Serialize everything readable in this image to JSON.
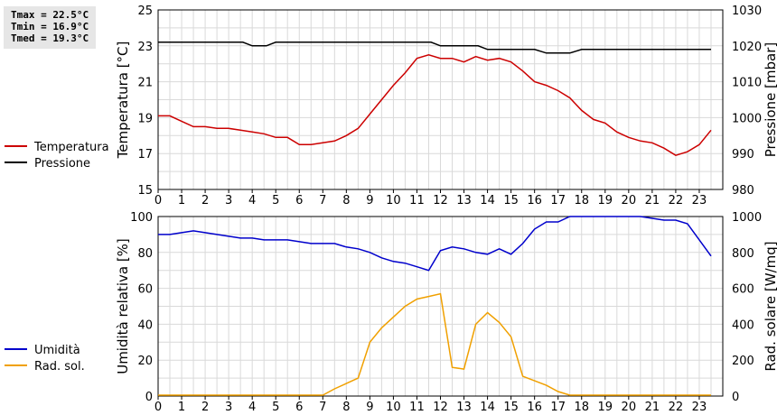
{
  "stats": {
    "tmax": "Tmax = 22.5°C",
    "tmin": "Tmin = 16.9°C",
    "tmed": "Tmed = 19.3°C"
  },
  "chart_data": [
    {
      "type": "line",
      "ylabel": "Temperatura [°C]",
      "ylabel_right": "Pressione [mbar]",
      "x_ticks": [
        "0",
        "1",
        "2",
        "3",
        "4",
        "5",
        "6",
        "7",
        "8",
        "9",
        "10",
        "11",
        "12",
        "13",
        "14",
        "15",
        "16",
        "17",
        "18",
        "19",
        "20",
        "21",
        "22",
        "23"
      ],
      "xlim": [
        0,
        24
      ],
      "ylim": [
        15,
        25
      ],
      "y_ticks": [
        "15",
        "17",
        "19",
        "21",
        "23",
        "25"
      ],
      "ylim_right": [
        980,
        1030
      ],
      "y_ticks_right": [
        "980",
        "990",
        "1000",
        "1010",
        "1020",
        "1030"
      ],
      "grid": true,
      "legend_position": "left",
      "series": [
        {
          "name": "Temperatura",
          "axis": "left",
          "color": "#cc0000",
          "x": [
            0,
            0.5,
            1,
            1.5,
            2,
            2.5,
            3,
            3.5,
            4,
            4.5,
            5,
            5.5,
            6,
            6.5,
            7,
            7.5,
            8,
            8.5,
            9,
            9.5,
            10,
            10.5,
            11,
            11.5,
            12,
            12.5,
            13,
            13.5,
            14,
            14.5,
            15,
            15.5,
            16,
            16.5,
            17,
            17.5,
            18,
            18.5,
            19,
            19.5,
            20,
            20.5,
            21,
            21.5,
            22,
            22.5,
            23,
            23.5
          ],
          "y": [
            19.1,
            19.1,
            18.8,
            18.5,
            18.5,
            18.4,
            18.4,
            18.3,
            18.2,
            18.1,
            17.9,
            17.9,
            17.5,
            17.5,
            17.6,
            17.7,
            18.0,
            18.4,
            19.2,
            20.0,
            20.8,
            21.5,
            22.3,
            22.5,
            22.3,
            22.3,
            22.1,
            22.4,
            22.2,
            22.3,
            22.1,
            21.6,
            21.0,
            20.8,
            20.5,
            20.1,
            19.4,
            18.9,
            18.7,
            18.2,
            17.9,
            17.7,
            17.6,
            17.3,
            16.9,
            17.1,
            17.5,
            18.3
          ]
        },
        {
          "name": "Pressione",
          "axis": "right",
          "color": "#000000",
          "x": [
            0,
            1,
            2,
            3,
            3.6,
            4,
            4.6,
            5,
            6,
            7,
            8,
            9,
            10,
            11,
            11.6,
            12,
            13,
            13.6,
            14,
            15,
            16,
            16.5,
            17,
            17.5,
            18,
            19,
            20,
            21,
            22,
            23,
            23.5
          ],
          "y": [
            1021,
            1021,
            1021,
            1021,
            1021,
            1020,
            1020,
            1021,
            1021,
            1021,
            1021,
            1021,
            1021,
            1021,
            1021,
            1020,
            1020,
            1020,
            1019,
            1019,
            1019,
            1018,
            1018,
            1018,
            1019,
            1019,
            1019,
            1019,
            1019,
            1019,
            1019
          ]
        }
      ]
    },
    {
      "type": "line",
      "ylabel": "Umidità relativa [%]",
      "ylabel_right": "Rad. solare [W/mq]",
      "x_ticks": [
        "0",
        "1",
        "2",
        "3",
        "4",
        "5",
        "6",
        "7",
        "8",
        "9",
        "10",
        "11",
        "12",
        "13",
        "14",
        "15",
        "16",
        "17",
        "18",
        "19",
        "20",
        "21",
        "22",
        "23"
      ],
      "xlim": [
        0,
        24
      ],
      "ylim": [
        0,
        100
      ],
      "y_ticks": [
        "0",
        "20",
        "40",
        "60",
        "80",
        "100"
      ],
      "ylim_right": [
        0,
        1000
      ],
      "y_ticks_right": [
        "0",
        "200",
        "400",
        "600",
        "800",
        "1000"
      ],
      "grid": true,
      "legend_position": "left",
      "series": [
        {
          "name": "Umidità",
          "axis": "left",
          "color": "#0000cc",
          "x": [
            0,
            0.5,
            1,
            1.5,
            2,
            2.5,
            3,
            3.5,
            4,
            4.5,
            5,
            5.5,
            6,
            6.5,
            7,
            7.5,
            8,
            8.5,
            9,
            9.5,
            10,
            10.5,
            11,
            11.5,
            12,
            12.5,
            13,
            13.5,
            14,
            14.5,
            15,
            15.5,
            16,
            16.5,
            17,
            17.5,
            18,
            18.5,
            19,
            19.5,
            20,
            20.5,
            21,
            21.5,
            22,
            22.5,
            23,
            23.5
          ],
          "y": [
            90,
            90,
            91,
            92,
            91,
            90,
            89,
            88,
            88,
            87,
            87,
            87,
            86,
            85,
            85,
            85,
            83,
            82,
            80,
            77,
            75,
            74,
            72,
            70,
            81,
            83,
            82,
            80,
            79,
            82,
            79,
            85,
            93,
            97,
            97,
            100,
            100,
            100,
            100,
            100,
            100,
            100,
            99,
            98,
            98,
            96,
            87,
            78
          ]
        },
        {
          "name": "Rad. sol.",
          "axis": "right",
          "color": "#f0a000",
          "x": [
            0,
            1,
            2,
            3,
            4,
            5,
            6,
            7,
            7.5,
            8,
            8.5,
            9,
            9.5,
            10,
            10.5,
            11,
            11.5,
            12,
            12.5,
            13,
            13.5,
            14,
            14.5,
            15,
            15.5,
            16,
            16.5,
            17,
            17.5,
            18,
            19,
            20,
            21,
            22,
            23,
            23.5
          ],
          "y": [
            5,
            5,
            5,
            5,
            5,
            5,
            5,
            5,
            40,
            70,
            100,
            300,
            380,
            440,
            500,
            540,
            555,
            570,
            160,
            150,
            400,
            465,
            410,
            330,
            110,
            85,
            60,
            25,
            5,
            5,
            5,
            5,
            5,
            5,
            5,
            5
          ]
        }
      ]
    }
  ]
}
